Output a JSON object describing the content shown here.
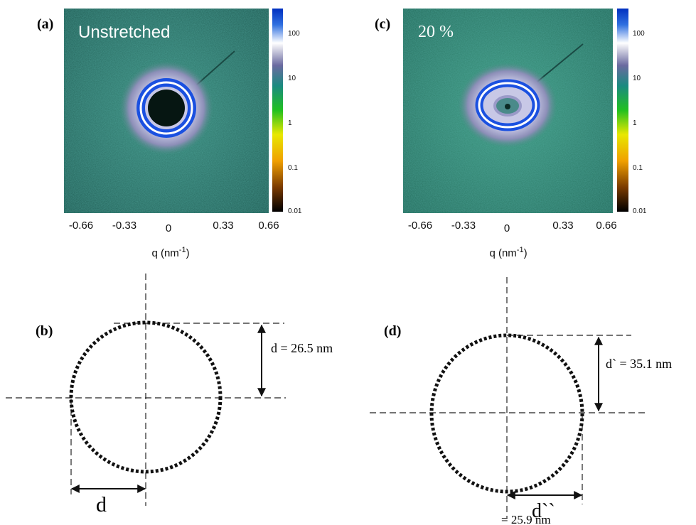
{
  "panels": [
    {
      "label": "(a)",
      "annotation": "Unstretched",
      "colorbar_labels": [
        "100",
        "10",
        "1",
        "0.1",
        "0.01"
      ],
      "x_ticks": [
        "-0.66",
        "-0.33",
        "0",
        "0.33",
        "0.66"
      ],
      "x_axis": {
        "text": "q (nm",
        "superscript": "-1",
        "suffix": ")"
      }
    },
    {
      "label": "(c)",
      "annotation": "20 %",
      "colorbar_labels": [
        "100",
        "10",
        "1",
        "0.1",
        "0.01"
      ],
      "x_ticks": [
        "-0.66",
        "-0.33",
        "0",
        "0.33",
        "0.66"
      ],
      "x_axis": {
        "text": "q (nm",
        "superscript": "-1",
        "suffix": ")"
      }
    }
  ],
  "diagrams": [
    {
      "label": "(b)",
      "vertical_dimension": "d = 26.5 nm",
      "horizontal_dimension": "d"
    },
    {
      "label": "(d)",
      "vertical_dimension": "d` = 35.1 nm",
      "horizontal_dimension": "d``",
      "horizontal_value": "= 25.9 nm"
    }
  ]
}
